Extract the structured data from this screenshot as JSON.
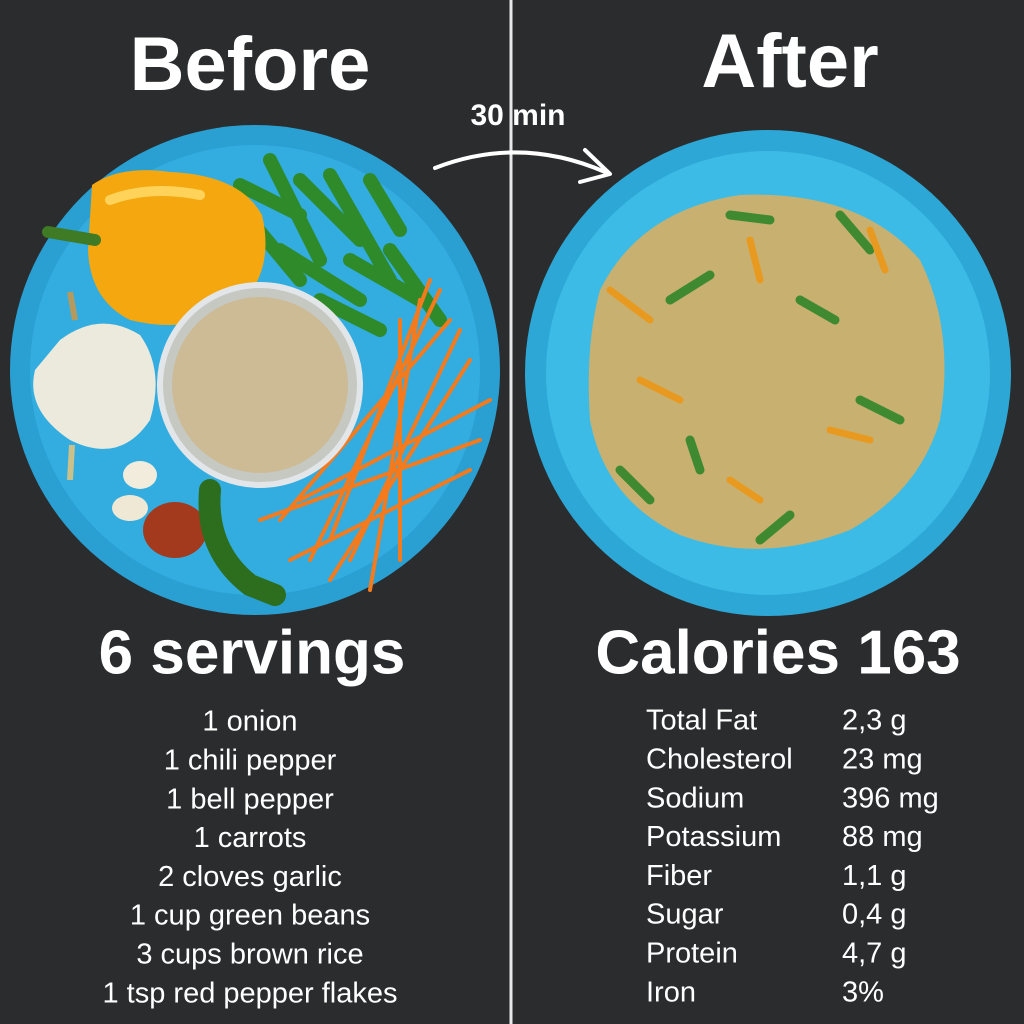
{
  "before": {
    "title": "Before",
    "servings": "6 servings",
    "ingredients": [
      "1 onion",
      "1 chili pepper",
      "1 bell pepper",
      "1 carrots",
      "2 cloves garlic",
      "1 cup green beans",
      "3 cups brown rice",
      "1 tsp red pepper flakes"
    ]
  },
  "time": "30 min",
  "after": {
    "title": "After",
    "calories": "Calories 163",
    "nutrition": [
      {
        "name": "Total Fat",
        "amount": "2,3 g"
      },
      {
        "name": "Cholesterol",
        "amount": "23 mg"
      },
      {
        "name": "Sodium",
        "amount": "396 mg"
      },
      {
        "name": "Potassium",
        "amount": "88 mg"
      },
      {
        "name": "Fiber",
        "amount": "1,1 g"
      },
      {
        "name": "Sugar",
        "amount": "0,4 g"
      },
      {
        "name": "Protein",
        "amount": "4,7 g"
      },
      {
        "name": "Iron",
        "amount": "3%"
      }
    ]
  }
}
